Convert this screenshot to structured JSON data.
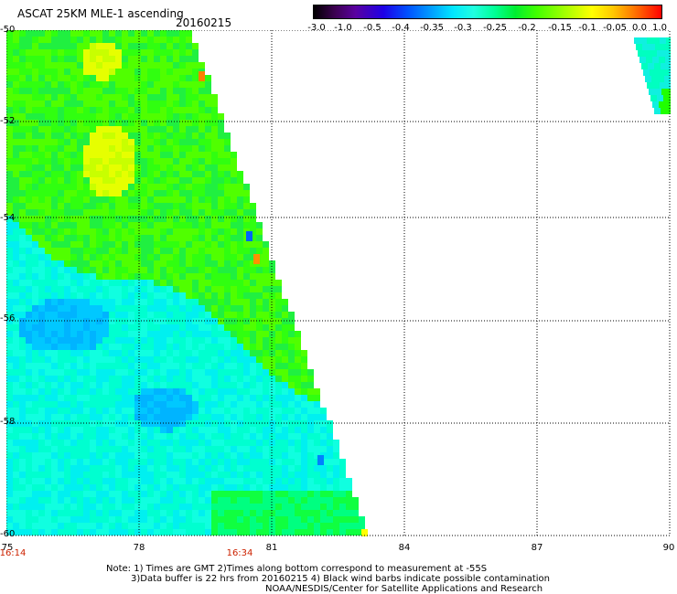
{
  "header": {
    "title": "ASCAT 25KM MLE-1 ascending",
    "date": "20160215"
  },
  "colorbar": {
    "labels": [
      "-3.0",
      "-1.0",
      "-0.5",
      "-0.4",
      "-0.35",
      "-0.3",
      "-0.25",
      "-0.2",
      "-0.15",
      "-0.1",
      "-0.05",
      "0.0",
      "1.0"
    ]
  },
  "map": {
    "lon_range": [
      75,
      90
    ],
    "lat_range": [
      -60,
      -50
    ],
    "lat_labels": [
      "-50",
      "-52",
      "-54",
      "-56",
      "-58",
      "-60"
    ],
    "lon_labels": [
      "75",
      "78",
      "81",
      "84",
      "87",
      "90"
    ],
    "time_labels": [
      "16:14",
      "16:34"
    ],
    "time_label_lons": [
      75,
      80.4
    ],
    "grid": "dotted"
  },
  "notes": {
    "line1": "Note: 1) Times are GMT 2)Times along bottom correspond to measurement at -55S",
    "line2": "3)Data buffer is 22 hrs from 20160215 4) Black wind barbs indicate possible contamination",
    "line3": "NOAA/NESDIS/Center for Satellite Applications and Research"
  }
}
